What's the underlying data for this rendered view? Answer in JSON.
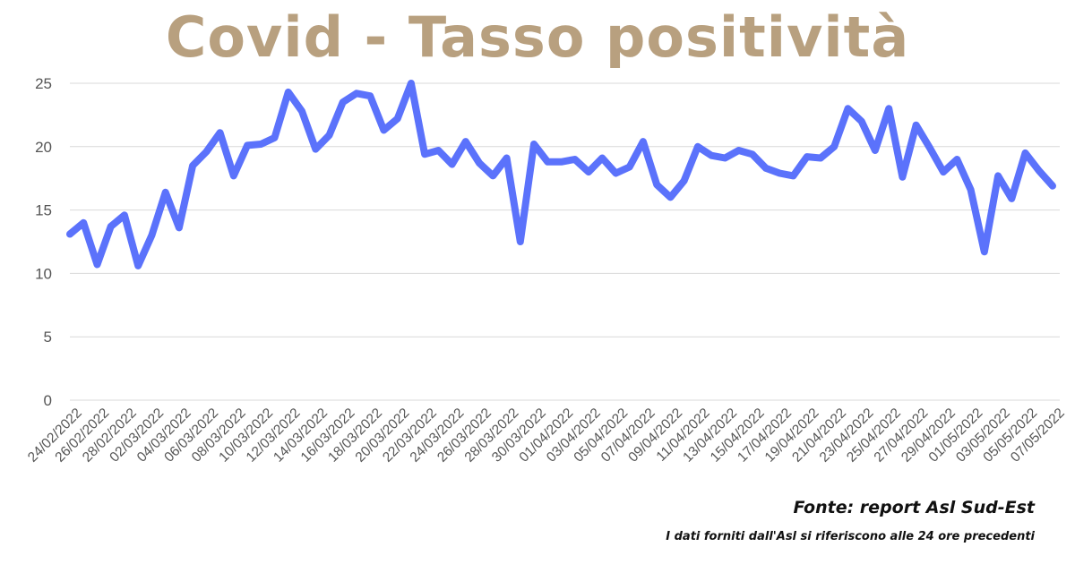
{
  "title": "Covid - Tasso positività",
  "source": "Fonte: report Asl Sud-Est",
  "note": "I dati forniti dall'Asl si riferiscono alle 24 ore precedenti",
  "colors": {
    "title": "#b8a07f",
    "line": "#5b72fb",
    "grid": "#d9d9d9",
    "ticks": "#555555"
  },
  "chart_data": {
    "type": "line",
    "title": "Covid - Tasso positività",
    "xlabel": "",
    "ylabel": "",
    "ylim": [
      0,
      25
    ],
    "y_ticks": [
      0,
      5,
      10,
      15,
      20,
      25
    ],
    "grid": true,
    "legend": "none",
    "x_tick_labels": [
      "24/02/2022",
      "26/02/2022",
      "28/02/2022",
      "02/03/2022",
      "04/03/2022",
      "06/03/2022",
      "08/03/2022",
      "10/03/2022",
      "12/03/2022",
      "14/03/2022",
      "16/03/2022",
      "18/03/2022",
      "20/03/2022",
      "22/03/2022",
      "24/03/2022",
      "26/03/2022",
      "28/03/2022",
      "30/03/2022",
      "01/04/2022",
      "03/04/2022",
      "05/04/2022",
      "07/04/2022",
      "09/04/2022",
      "11/04/2022",
      "13/04/2022",
      "15/04/2022",
      "17/04/2022",
      "19/04/2022",
      "21/04/2022",
      "23/04/2022",
      "25/04/2022",
      "27/04/2022",
      "29/04/2022",
      "01/05/2022",
      "03/05/2022",
      "05/05/2022",
      "07/05/2022"
    ],
    "series": [
      {
        "values": [
          13.1,
          14.0,
          10.7,
          13.7,
          14.6,
          10.6,
          13.0,
          16.4,
          13.6,
          18.5,
          19.6,
          21.1,
          17.7,
          20.1,
          20.2,
          20.7,
          24.3,
          22.8,
          19.8,
          20.9,
          23.5,
          24.2,
          24.0,
          21.3,
          22.2,
          25.0,
          19.4,
          19.7,
          18.6,
          20.4,
          18.7,
          17.7,
          19.1,
          12.5,
          20.2,
          18.8,
          18.8,
          19.0,
          18.0,
          19.1,
          17.9,
          18.4,
          20.4,
          17.0,
          16.0,
          17.3,
          20.0,
          19.3,
          19.1,
          19.7,
          19.4,
          18.3,
          17.9,
          17.7,
          19.2,
          19.1,
          20.0,
          23.0,
          22.0,
          19.7,
          23.0,
          17.6,
          21.7,
          19.9,
          18.0,
          19.0,
          16.6,
          11.7,
          17.7,
          15.9,
          19.5,
          18.1,
          16.9
        ]
      }
    ]
  }
}
